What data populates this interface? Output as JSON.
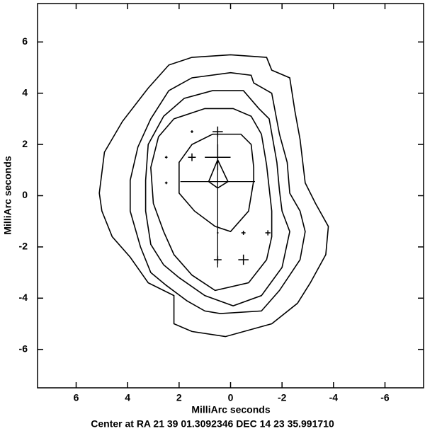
{
  "chart_data": {
    "type": "contour",
    "xlabel": "MilliArc seconds",
    "ylabel": "MilliArc seconds",
    "footer": "Center at RA 21 39 01.3092346  DEC 14 23 35.991710",
    "xlim": [
      7.5,
      -7.5
    ],
    "ylim": [
      -7.5,
      7.5
    ],
    "xticks": [
      6,
      4,
      2,
      0,
      -2,
      -4,
      -6
    ],
    "yticks": [
      -6,
      -4,
      -2,
      0,
      2,
      4,
      6
    ],
    "color": "#000000",
    "contours": [
      {
        "x": [
          5.1,
          4.9,
          4.2,
          3.2,
          2.4,
          1.5,
          0.0,
          -1.4,
          -1.6,
          -2.3,
          -2.5,
          -2.7,
          -2.9,
          -3.3,
          -3.8,
          -3.7,
          -3.1,
          -2.6,
          -1.6,
          0.2,
          1.5,
          2.2,
          2.2,
          3.2,
          3.9,
          4.6,
          5.0
        ],
        "y": [
          0.1,
          1.7,
          2.9,
          4.2,
          5.1,
          5.4,
          5.5,
          5.4,
          4.9,
          4.6,
          3.3,
          2.2,
          0.5,
          -0.3,
          -1.2,
          -2.3,
          -3.4,
          -4.2,
          -5.0,
          -5.5,
          -5.3,
          -5.0,
          -3.9,
          -3.4,
          -2.4,
          -1.6,
          -0.6
        ]
      },
      {
        "x": [
          3.9,
          3.6,
          3.1,
          2.4,
          1.5,
          0.0,
          -0.8,
          -0.9,
          -1.6,
          -1.9,
          -2.2,
          -2.3,
          -2.7,
          -2.9,
          -2.7,
          -1.9,
          -1.2,
          0.4,
          1.0,
          1.7,
          2.5,
          3.1,
          3.5,
          3.9
        ],
        "y": [
          0.6,
          1.9,
          3.0,
          4.1,
          4.6,
          4.8,
          4.7,
          4.4,
          4.0,
          2.4,
          1.3,
          0.1,
          -0.6,
          -1.4,
          -2.5,
          -3.7,
          -4.5,
          -4.6,
          -4.5,
          -4.1,
          -3.5,
          -3.0,
          -2.0,
          -0.6
        ]
      },
      {
        "x": [
          3.3,
          3.2,
          2.6,
          1.8,
          0.7,
          -0.5,
          -1.1,
          -1.5,
          -1.8,
          -1.9,
          -2.0,
          -2.3,
          -2.0,
          -1.2,
          -0.1,
          1.0,
          2.0,
          2.6,
          3.1,
          3.3
        ],
        "y": [
          0.6,
          2.0,
          3.1,
          3.8,
          4.1,
          4.1,
          3.4,
          3.0,
          1.3,
          0.2,
          -0.6,
          -1.4,
          -2.8,
          -3.9,
          -4.3,
          -3.9,
          -3.2,
          -2.7,
          -1.9,
          -0.6
        ]
      },
      {
        "x": [
          3.1,
          2.8,
          2.2,
          1.0,
          -0.1,
          -0.8,
          -1.2,
          -1.4,
          -1.6,
          -1.6,
          -1.4,
          -0.7,
          0.6,
          1.5,
          2.2,
          2.6,
          3.0
        ],
        "y": [
          1.1,
          2.3,
          3.0,
          3.4,
          3.4,
          3.1,
          2.4,
          1.2,
          -0.6,
          -1.6,
          -2.5,
          -3.4,
          -3.7,
          -3.1,
          -2.3,
          -1.4,
          -0.3
        ]
      },
      {
        "x": [
          2.0,
          1.5,
          0.7,
          -0.4,
          -0.8,
          -0.9,
          -0.9,
          -0.7,
          0.0,
          0.6,
          1.4,
          2.0
        ],
        "y": [
          1.3,
          2.0,
          2.4,
          2.4,
          2.0,
          1.1,
          0.6,
          -0.6,
          -1.4,
          -1.2,
          -0.6,
          0.1
        ]
      },
      {
        "x": [
          0.5,
          0.1,
          0.5,
          0.85
        ],
        "y": [
          1.4,
          0.55,
          0.3,
          0.55
        ]
      }
    ],
    "segments": [
      {
        "x": [
          1.95,
          -0.95
        ],
        "y": [
          0.55,
          0.55
        ]
      },
      {
        "x": [
          0.5,
          0.5
        ],
        "y": [
          2.6,
          -2.8
        ]
      }
    ],
    "markers": {
      "x": [
        0.5,
        0.5,
        1.5,
        1.5,
        2.5,
        2.5,
        0.5,
        -0.5,
        -1.45,
        0.5,
        -0.5
      ],
      "y": [
        2.5,
        1.5,
        1.5,
        2.5,
        1.5,
        0.5,
        -1.45,
        -1.45,
        -1.45,
        -2.5,
        -2.5
      ],
      "size": [
        0.2,
        0.5,
        0.15,
        0.05,
        0.05,
        0.05,
        0.03,
        0.08,
        0.1,
        0.15,
        0.2
      ]
    }
  }
}
